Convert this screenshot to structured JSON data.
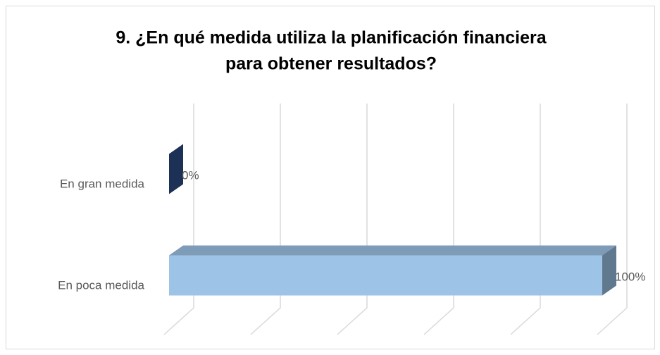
{
  "chart_data": {
    "type": "bar3d_horizontal",
    "title": [
      "9. ¿En qué medida utiliza la planificación financiera",
      "para obtener resultados?"
    ],
    "categories": [
      "En gran medida",
      "En poca medida"
    ],
    "values": [
      0,
      100
    ],
    "value_labels": [
      "0%",
      "100%"
    ],
    "colors": [
      "#2f4f8a",
      "#9dc3e6"
    ],
    "xlim": [
      0,
      100
    ],
    "xticks": [
      0,
      20,
      40,
      60,
      80,
      100
    ],
    "grid": true
  }
}
